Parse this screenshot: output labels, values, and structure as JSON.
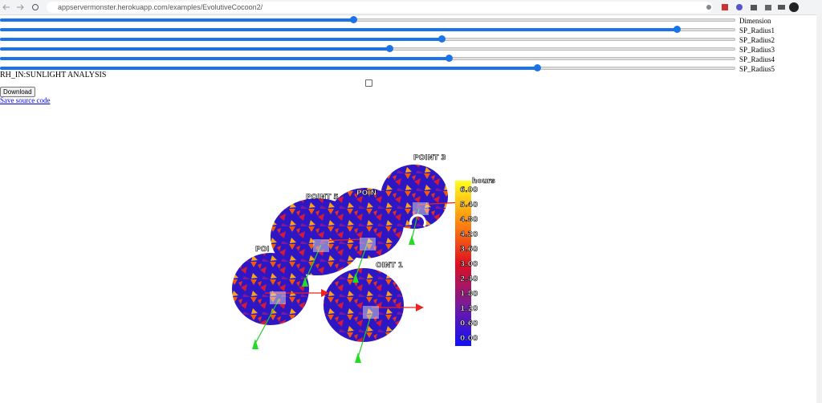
{
  "browser": {
    "url": "appservermonster.herokuapp.com/examples/EvolutiveCocoon2/"
  },
  "sliders": [
    {
      "label": "Dimension",
      "value": 48
    },
    {
      "label": "SP_Radius1",
      "value": 92
    },
    {
      "label": "SP_Radius2",
      "value": 60
    },
    {
      "label": "SP_Radius3",
      "value": 53
    },
    {
      "label": "SP_Radius4",
      "value": 61
    },
    {
      "label": "SP_Radius5",
      "value": 73
    }
  ],
  "analysis_title": "RH_IN:SUNLIGHT ANALYSIS",
  "download_button": "Download",
  "save_link": "Save source code",
  "scene": {
    "point_labels": [
      "POINT 3",
      "POINT 5",
      "POIN",
      "POI",
      "OINT 1"
    ],
    "legend": {
      "title": "hours",
      "labels": [
        "6.00",
        "5.40",
        "4.80",
        "4.20",
        "3.60",
        "3.00",
        "2.40",
        "1.80",
        "1.20",
        "0.60",
        "0.00"
      ]
    }
  }
}
